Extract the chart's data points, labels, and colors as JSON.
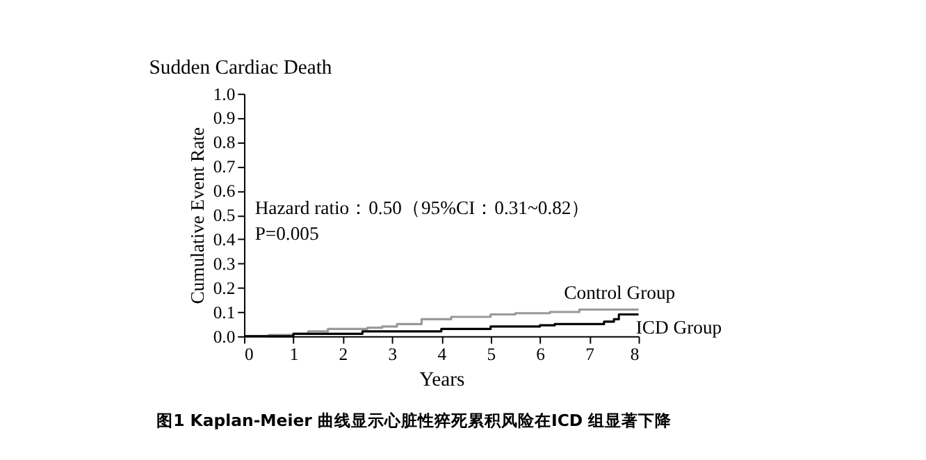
{
  "chart_data": {
    "type": "step",
    "title": "Sudden Cardiac Death",
    "xlabel": "Years",
    "ylabel": "Cumulative Event Rate",
    "xlim": [
      0,
      8
    ],
    "xticks": [
      0,
      1,
      2,
      3,
      4,
      5,
      6,
      7,
      8
    ],
    "ylim": [
      0,
      1.0
    ],
    "yticks": [
      {
        "value": 0,
        "label": "0.0"
      },
      0.1,
      0.2,
      0.3,
      0.4,
      0.5,
      0.6,
      0.7,
      0.8,
      0.9,
      {
        "value": 1,
        "label": "1.0"
      }
    ],
    "grid": false,
    "legend": false,
    "series": [
      {
        "name": "Control Group",
        "color": "#999999",
        "x": [
          0,
          0.5,
          1,
          1.3,
          1.7,
          2.5,
          2.8,
          3.1,
          3.6,
          4.2,
          5,
          5.5,
          6.2,
          6.8,
          8
        ],
        "values": [
          0,
          0.005,
          0.01,
          0.02,
          0.03,
          0.035,
          0.04,
          0.05,
          0.07,
          0.08,
          0.09,
          0.095,
          0.1,
          0.11,
          0.11
        ]
      },
      {
        "name": "ICD Group",
        "color": "#000000",
        "x": [
          0,
          1,
          2.4,
          4,
          5,
          6,
          6.3,
          7.3,
          7.5,
          7.6,
          8
        ],
        "values": [
          0,
          0.01,
          0.02,
          0.03,
          0.04,
          0.045,
          0.05,
          0.06,
          0.07,
          0.09,
          0.09
        ]
      }
    ],
    "annotations": [
      "Hazard ratio：0.50（95%CI：0.31~0.82）",
      "P=0.005",
      "图1 Kaplan-Meier 曲线显示心脏性猝死累积风险在ICD 组显著下降"
    ]
  }
}
